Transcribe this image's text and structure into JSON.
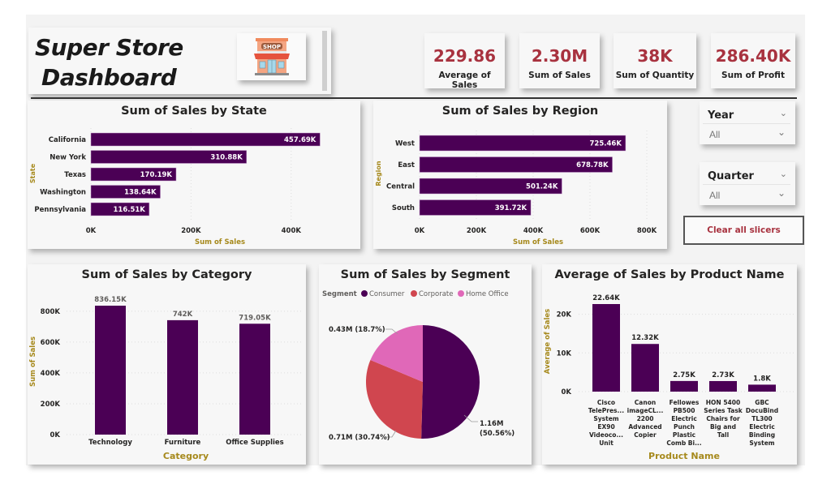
{
  "header": {
    "title_line1": "Super Store",
    "title_line2": "Dashboard",
    "logo_icon": "shop-storefront-icon",
    "logo_text": "SHOP"
  },
  "kpis": [
    {
      "value": "229.86",
      "label": "Average of Sales"
    },
    {
      "value": "2.30M",
      "label": "Sum of Sales"
    },
    {
      "value": "38K",
      "label": "Sum of Quantity"
    },
    {
      "value": "286.40K",
      "label": "Sum of Profit"
    }
  ],
  "slicers": [
    {
      "title": "Year",
      "value": "All"
    },
    {
      "title": "Quarter",
      "value": "All"
    }
  ],
  "clear_button_label": "Clear all slicers",
  "colors": {
    "bar": "#4b0055",
    "kpi_value": "#a8323f",
    "axis_title": "#a6891c",
    "consumer": "#4b0055",
    "corporate": "#d0464f",
    "home_office": "#e068b8"
  },
  "chart_data": [
    {
      "id": "state",
      "type": "bar",
      "orientation": "horizontal",
      "title": "Sum of Sales by State",
      "xlabel": "Sum of Sales",
      "ylabel": "State",
      "categories": [
        "California",
        "New York",
        "Texas",
        "Washington",
        "Pennsylvania"
      ],
      "values": [
        457690,
        310880,
        170190,
        138640,
        116510
      ],
      "data_labels": [
        "457.69K",
        "310.88K",
        "170.19K",
        "138.64K",
        "116.51K"
      ],
      "ticks": [
        0,
        200000,
        400000
      ],
      "tick_labels": [
        "0K",
        "200K",
        "400K"
      ],
      "xlim": [
        0,
        470000
      ],
      "grid": true
    },
    {
      "id": "region",
      "type": "bar",
      "orientation": "horizontal",
      "title": "Sum of Sales by Region",
      "xlabel": "Sum of Sales",
      "ylabel": "Region",
      "categories": [
        "West",
        "East",
        "Central",
        "South"
      ],
      "values": [
        725460,
        678780,
        501240,
        391720
      ],
      "data_labels": [
        "725.46K",
        "678.78K",
        "501.24K",
        "391.72K"
      ],
      "ticks": [
        0,
        200000,
        400000,
        600000,
        800000
      ],
      "tick_labels": [
        "0K",
        "200K",
        "400K",
        "600K",
        "800K"
      ],
      "xlim": [
        0,
        800000
      ],
      "grid": true
    },
    {
      "id": "category",
      "type": "bar",
      "orientation": "vertical",
      "title": "Sum of Sales by Category",
      "xlabel": "Category",
      "ylabel": "Sum of Sales",
      "categories": [
        "Technology",
        "Furniture",
        "Office Supplies"
      ],
      "values": [
        836150,
        742000,
        719050
      ],
      "data_labels": [
        "836.15K",
        "742K",
        "719.05K"
      ],
      "ticks": [
        0,
        200000,
        400000,
        600000,
        800000
      ],
      "tick_labels": [
        "0K",
        "200K",
        "400K",
        "600K",
        "800K"
      ],
      "ylim": [
        0,
        836150
      ],
      "grid": true
    },
    {
      "id": "segment",
      "type": "pie",
      "title": "Sum of Sales by Segment",
      "legend_title": "Segment",
      "legend_position": "top-left",
      "categories": [
        "Consumer",
        "Corporate",
        "Home Office"
      ],
      "values": [
        1160000,
        710000,
        430000
      ],
      "percentages": [
        50.56,
        30.74,
        18.7
      ],
      "data_labels": [
        "1.16M (50.56%)",
        "0.71M (30.74%)",
        "0.43M (18.7%)"
      ],
      "data_labels_split": [
        [
          "1.16M",
          "(50.56%)"
        ],
        [
          "0.71M (30.74%)"
        ],
        [
          "0.43M (18.7%)"
        ]
      ]
    },
    {
      "id": "product",
      "type": "bar",
      "orientation": "vertical",
      "title": "Average of Sales by Product Name",
      "xlabel": "Product Name",
      "ylabel": "Average of Sales",
      "categories": [
        [
          "Cisco",
          "TelePres...",
          "System",
          "EX90",
          "Videoco...",
          "Unit"
        ],
        [
          "Canon",
          "imageCL...",
          "2200",
          "Advanced",
          "Copier"
        ],
        [
          "Fellowes",
          "PB500",
          "Electric",
          "Punch",
          "Plastic",
          "Comb Bi..."
        ],
        [
          "HON 5400",
          "Series Task",
          "Chairs for",
          "Big and",
          "Tall"
        ],
        [
          "GBC",
          "DocuBind",
          "TL300",
          "Electric",
          "Binding",
          "System"
        ]
      ],
      "values": [
        22640,
        12320,
        2750,
        2730,
        1800
      ],
      "data_labels": [
        "22.64K",
        "12.32K",
        "2.75K",
        "2.73K",
        "1.8K"
      ],
      "ticks": [
        0,
        10000,
        20000
      ],
      "tick_labels": [
        "0K",
        "10K",
        "20K"
      ],
      "ylim": [
        0,
        22640
      ],
      "grid": true
    }
  ]
}
